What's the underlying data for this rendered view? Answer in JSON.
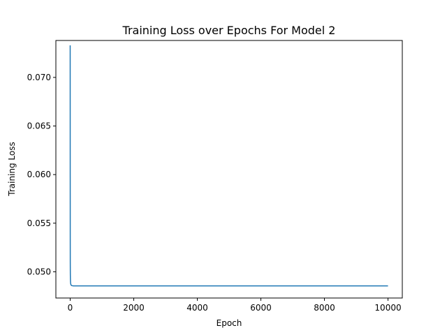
{
  "chart_data": {
    "type": "line",
    "title": "Training Loss over Epochs For Model 2",
    "xlabel": "Epoch",
    "ylabel": "Training Loss",
    "xlim": [
      -450,
      10450
    ],
    "ylim": [
      0.0473,
      0.0738
    ],
    "xticks": [
      0,
      2000,
      4000,
      6000,
      8000,
      10000
    ],
    "xtick_labels": [
      "0",
      "2000",
      "4000",
      "6000",
      "8000",
      "10000"
    ],
    "yticks": [
      0.05,
      0.055,
      0.06,
      0.065,
      0.07
    ],
    "ytick_labels": [
      "0.050",
      "0.055",
      "0.060",
      "0.065",
      "0.070"
    ],
    "grid": false,
    "series": [
      {
        "color": "#1f77b4",
        "x": [
          0,
          1,
          2,
          3,
          4,
          5,
          6,
          8,
          10,
          12,
          15,
          20,
          25,
          30,
          40,
          50,
          60,
          80,
          100,
          150,
          200,
          300,
          500,
          1000,
          2000,
          3000,
          4000,
          5000,
          6000,
          7000,
          8000,
          9000,
          10000
        ],
        "y": [
          0.0733,
          0.062,
          0.0535,
          0.051,
          0.0502,
          0.0498,
          0.0495,
          0.0492,
          0.049,
          0.0489,
          0.0488,
          0.0487,
          0.04867,
          0.04863,
          0.0486,
          0.04858,
          0.04857,
          0.04856,
          0.04855,
          0.04855,
          0.04855,
          0.04855,
          0.04855,
          0.04855,
          0.04855,
          0.04855,
          0.04855,
          0.04855,
          0.04855,
          0.04855,
          0.04855,
          0.04855,
          0.04855
        ]
      }
    ]
  }
}
